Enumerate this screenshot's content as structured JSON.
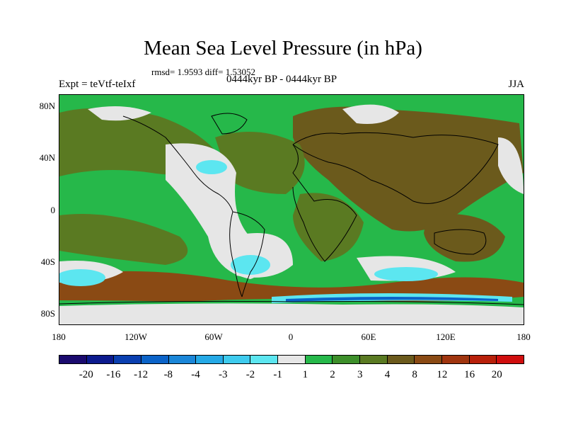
{
  "title": "Mean Sea Level Pressure (in hPa)",
  "stats": "rmsd= 1.9593 diff= 1.53052",
  "period": "0444kyr BP - 0444kyr BP",
  "experiment": "Expt = teVtf-teIxf",
  "season": "JJA",
  "lat_labels": [
    "80N",
    "40N",
    "0",
    "40S",
    "80S"
  ],
  "lon_labels": [
    "180",
    "120W",
    "60W",
    "0",
    "60E",
    "120E",
    "180"
  ],
  "colorbar": {
    "colors": [
      "#1a0a6e",
      "#0c1a8e",
      "#0a3fb0",
      "#0b63c8",
      "#1a86d8",
      "#25a9e6",
      "#3ecbee",
      "#5ce6f0",
      "#e6e6e6",
      "#26b84a",
      "#3d8f2a",
      "#5a7a22",
      "#6b5a1c",
      "#8a4a14",
      "#a0350f",
      "#b8200a",
      "#d00e0e"
    ],
    "labels": [
      "-20",
      "-16",
      "-12",
      "-8",
      "-4",
      "-3",
      "-2",
      "-1",
      "1",
      "2",
      "3",
      "4",
      "8",
      "12",
      "16",
      "20"
    ]
  }
}
